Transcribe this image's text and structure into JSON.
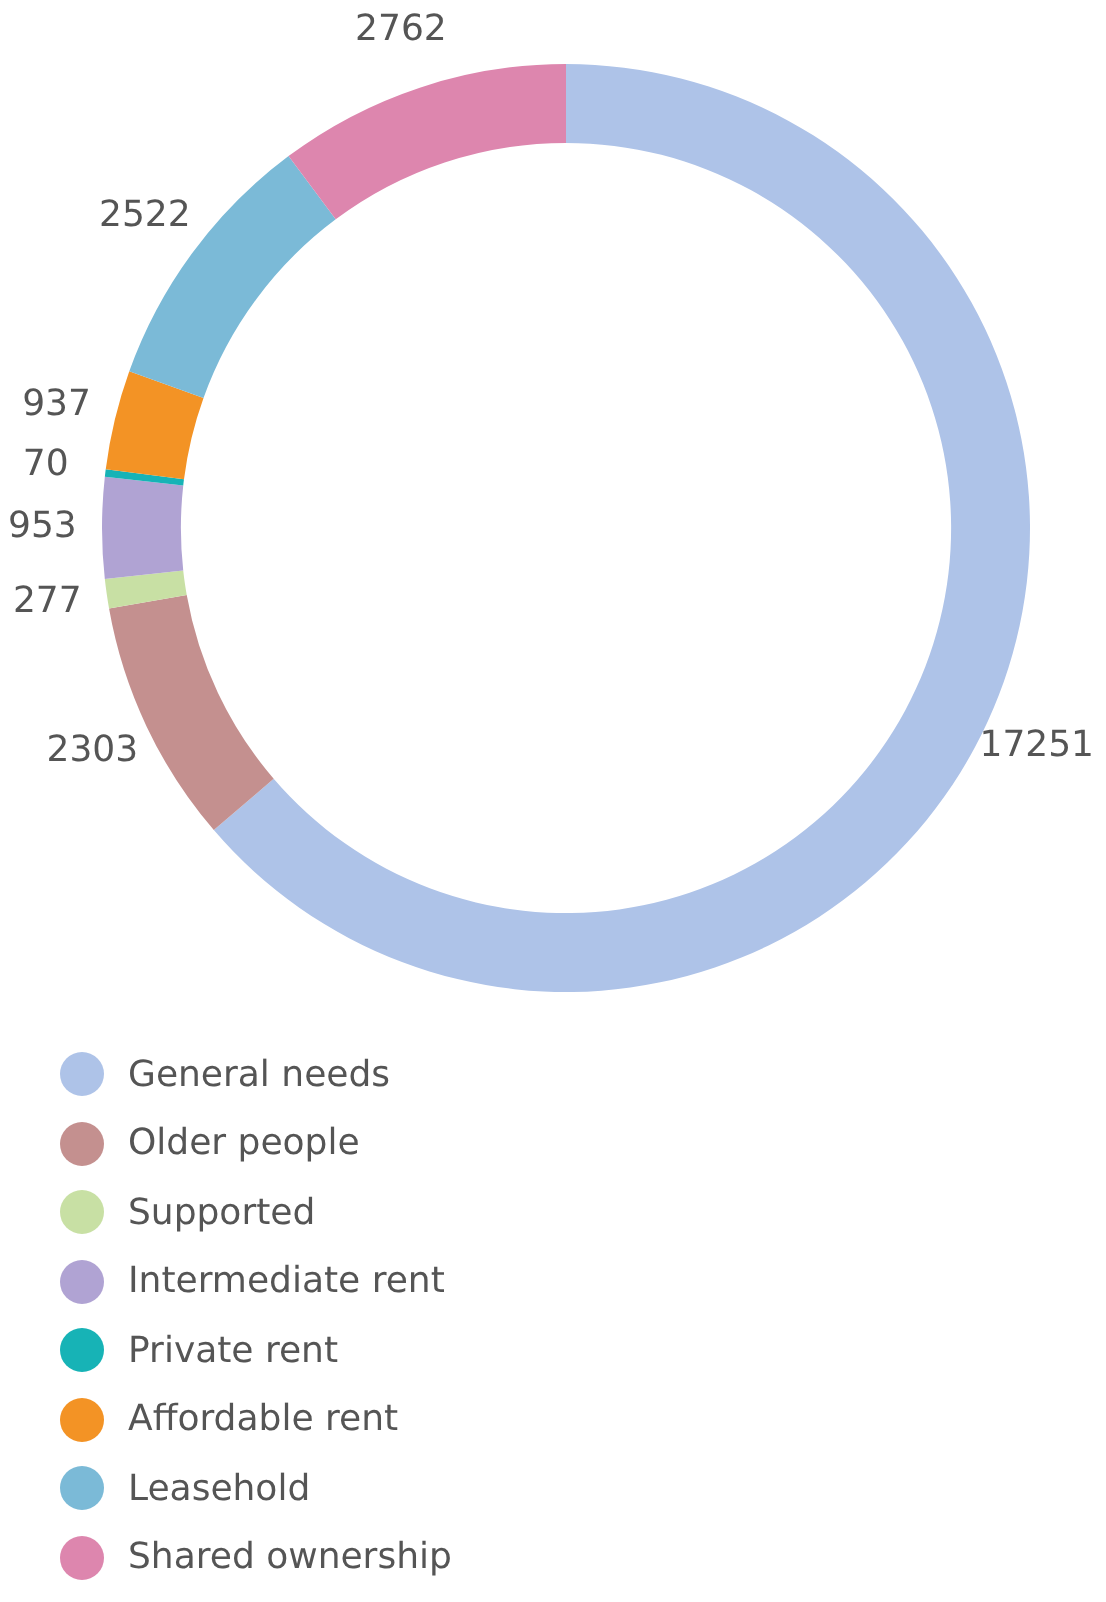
{
  "chart_data": {
    "type": "donut",
    "categories": [
      "General needs",
      "Older people",
      "Supported",
      "Intermediate rent",
      "Private rent",
      "Affordable rent",
      "Leasehold",
      "Shared ownership"
    ],
    "values": [
      17251,
      2303,
      277,
      953,
      70,
      937,
      2522,
      2762
    ],
    "colors": [
      "#aec3e8",
      "#c4908f",
      "#c8e0a4",
      "#b0a3d3",
      "#17b3b6",
      "#f39325",
      "#7bbad7",
      "#dd86ae"
    ],
    "data_labels": true,
    "legend": "bottom"
  }
}
